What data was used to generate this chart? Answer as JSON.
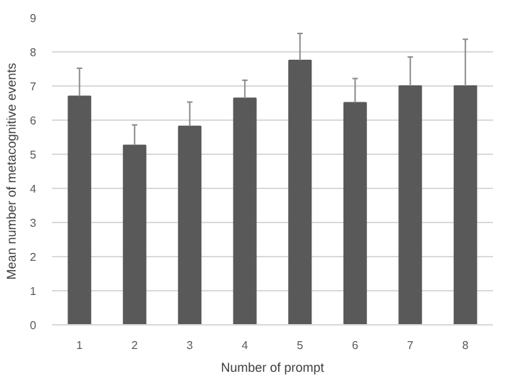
{
  "chart_data": {
    "type": "bar",
    "xlabel": "Number of prompt",
    "ylabel": "Mean number of metacognitive events",
    "categories": [
      "1",
      "2",
      "3",
      "4",
      "5",
      "6",
      "7",
      "8"
    ],
    "values": [
      6.7,
      5.26,
      5.82,
      6.64,
      7.75,
      6.51,
      7.0,
      7.0
    ],
    "errors": [
      [
        6.7,
        7.52
      ],
      [
        5.26,
        5.86
      ],
      [
        5.82,
        6.53
      ],
      [
        6.64,
        7.17
      ],
      [
        7.75,
        8.54
      ],
      [
        6.51,
        7.22
      ],
      [
        7.0,
        7.85
      ],
      [
        7.0,
        8.37
      ]
    ],
    "color": "#595959",
    "ylim": [
      0,
      9
    ],
    "yticks": [
      0,
      1,
      2,
      3,
      4,
      5,
      6,
      7,
      8,
      9
    ],
    "grid": "y"
  }
}
